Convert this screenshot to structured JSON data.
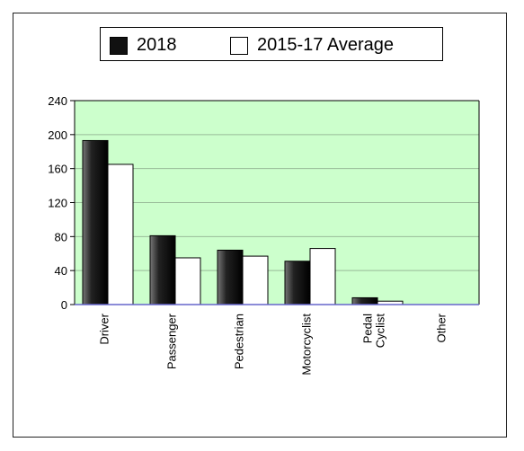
{
  "colors": {
    "plot_background": "#ccffcc",
    "series_2018": "#111111",
    "series_avg": "#ffffff",
    "gridline": "#99bb99"
  },
  "chart_data": {
    "type": "bar",
    "categories": [
      "Driver",
      "Passenger",
      "Pedestrian",
      "Motorcyclist",
      "Pedal Cyclist",
      "Other"
    ],
    "category_lines": [
      [
        "Driver"
      ],
      [
        "Passenger"
      ],
      [
        "Pedestrian"
      ],
      [
        "Motorcyclist"
      ],
      [
        "Pedal",
        "Cyclist"
      ],
      [
        "Other"
      ]
    ],
    "series": [
      {
        "name": "2018",
        "values": [
          193,
          81,
          64,
          51,
          8,
          0
        ]
      },
      {
        "name": "2015-17 Average",
        "values": [
          165,
          55,
          57,
          66,
          4,
          0
        ]
      }
    ],
    "yticks": [
      0,
      40,
      80,
      120,
      160,
      200,
      240
    ],
    "ylim": [
      0,
      240
    ],
    "title": "",
    "xlabel": "",
    "ylabel": "",
    "grid": true,
    "legend_position": "top-center"
  }
}
